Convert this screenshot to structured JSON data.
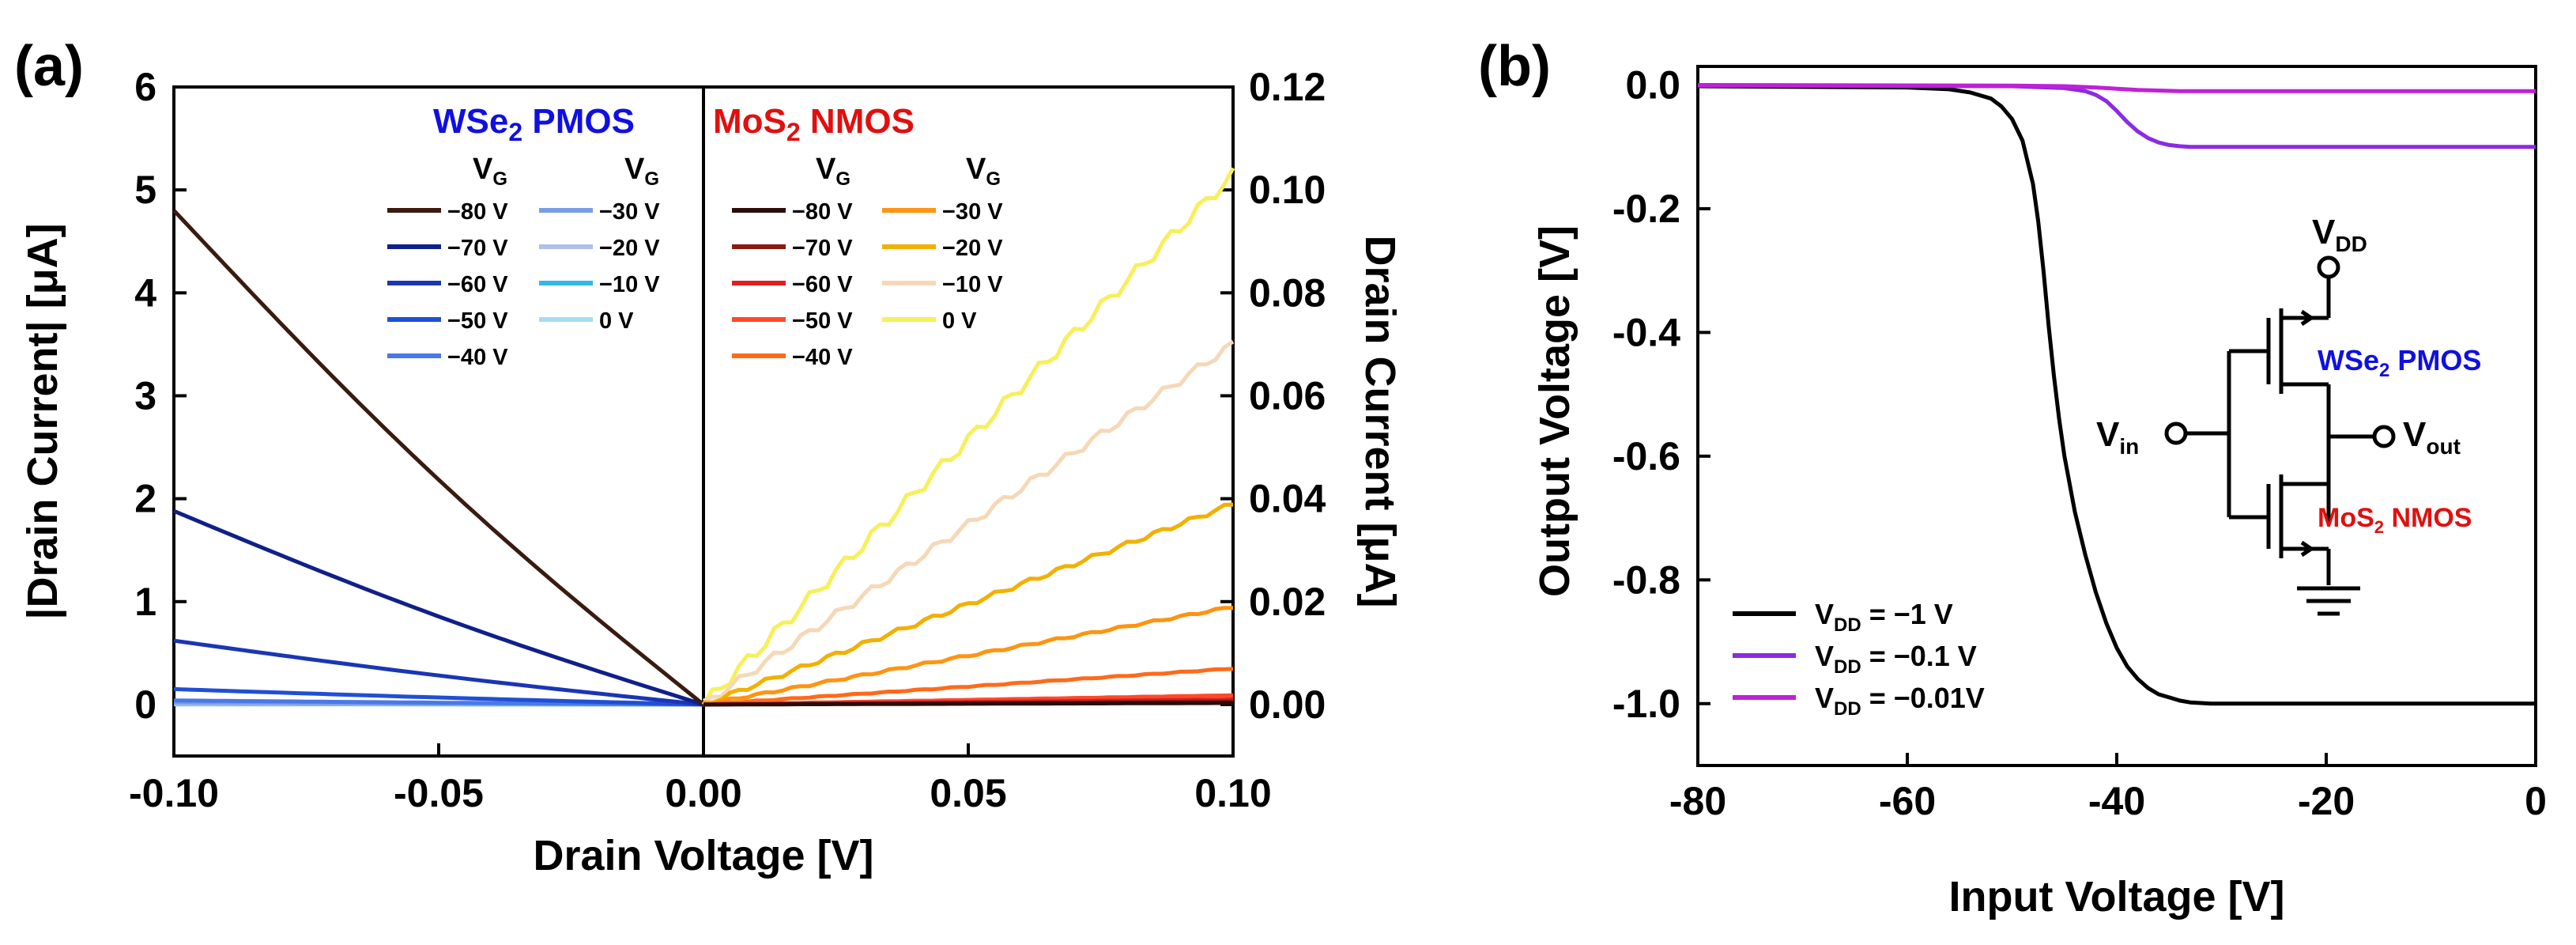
{
  "chart_data": [
    {
      "panel": "(a)",
      "type": "line",
      "xlabel": "Drain Voltage [V]",
      "ylabel_left": "|Drain Current| [μA]",
      "ylabel_right": "Drain Current [μA]",
      "xlim": [
        -0.1,
        0.1
      ],
      "ylim_left": [
        -0.5,
        6
      ],
      "ylim_right": [
        -0.01,
        0.12
      ],
      "xticks": [
        "-0.10",
        "-0.05",
        "0.00",
        "0.05",
        "0.10"
      ],
      "yticks_left": [
        "0",
        "1",
        "2",
        "3",
        "4",
        "5",
        "6"
      ],
      "yticks_right": [
        "0.00",
        "0.02",
        "0.04",
        "0.06",
        "0.08",
        "0.10",
        "0.12"
      ],
      "legend_header": "V",
      "legend_header_sub": "G",
      "pmos": {
        "title_main": "WSe",
        "title_sub": "2",
        "title_rest": " PMOS",
        "title_color": "#1010e0",
        "series": [
          {
            "name": "−80 V",
            "color": "#3b1a10",
            "x": [
              -0.1,
              0.0
            ],
            "y": [
              4.8,
              0.0
            ]
          },
          {
            "name": "−70 V",
            "color": "#10208a",
            "x": [
              -0.1,
              0.0
            ],
            "y": [
              1.88,
              0.0
            ]
          },
          {
            "name": "−60 V",
            "color": "#1a36b5",
            "x": [
              -0.1,
              0.0
            ],
            "y": [
              0.62,
              0.0
            ]
          },
          {
            "name": "−50 V",
            "color": "#1f4fd6",
            "x": [
              -0.1,
              0.0
            ],
            "y": [
              0.15,
              0.0
            ]
          },
          {
            "name": "−40 V",
            "color": "#4a78e8",
            "x": [
              -0.1,
              0.0
            ],
            "y": [
              0.04,
              0.0
            ]
          },
          {
            "name": "−30 V",
            "color": "#7a9de8",
            "x": [
              -0.1,
              0.0
            ],
            "y": [
              0.02,
              0.0
            ]
          },
          {
            "name": "−20 V",
            "color": "#aebfe8",
            "x": [
              -0.1,
              0.0
            ],
            "y": [
              0.01,
              0.0
            ]
          },
          {
            "name": "−10 V",
            "color": "#30b8e8",
            "x": [
              -0.1,
              0.0
            ],
            "y": [
              0.005,
              0.0
            ]
          },
          {
            "name": "0 V",
            "color": "#a8dcf2",
            "x": [
              -0.1,
              0.0
            ],
            "y": [
              0.002,
              0.0
            ]
          }
        ]
      },
      "nmos": {
        "title_main": "MoS",
        "title_sub": "2",
        "title_rest": " NMOS",
        "title_color": "#e01010",
        "series": [
          {
            "name": "−80 V",
            "color": "#2a0d08",
            "x": [
              0.0,
              0.1
            ],
            "y": [
              0.0,
              0.0003
            ]
          },
          {
            "name": "−70 V",
            "color": "#8a1a12",
            "x": [
              0.0,
              0.1
            ],
            "y": [
              0.0,
              0.0006
            ]
          },
          {
            "name": "−60 V",
            "color": "#e02020",
            "x": [
              0.0,
              0.1
            ],
            "y": [
              0.0,
              0.001
            ]
          },
          {
            "name": "−50 V",
            "color": "#ff4a2a",
            "x": [
              0.0,
              0.1
            ],
            "y": [
              0.0,
              0.0018
            ]
          },
          {
            "name": "−40 V",
            "color": "#ff6a1a",
            "x": [
              0.0,
              0.1
            ],
            "y": [
              0.0,
              0.007
            ]
          },
          {
            "name": "−30 V",
            "color": "#ff9410",
            "x": [
              0.0,
              0.1
            ],
            "y": [
              0.0,
              0.019
            ]
          },
          {
            "name": "−20 V",
            "color": "#f2b000",
            "x": [
              0.0,
              0.1
            ],
            "y": [
              0.0,
              0.039
            ]
          },
          {
            "name": "−10 V",
            "color": "#f6d8b8",
            "x": [
              0.0,
              0.1
            ],
            "y": [
              0.0,
              0.07
            ]
          },
          {
            "name": "0 V",
            "color": "#f6f05a",
            "x": [
              0.0,
              0.1
            ],
            "y": [
              0.0,
              0.103
            ]
          }
        ]
      }
    },
    {
      "panel": "(b)",
      "type": "line",
      "xlabel": "Input Voltage [V]",
      "ylabel": "Output Voltage [V]",
      "xlim": [
        -80,
        0
      ],
      "ylim": [
        -1.1,
        0.03
      ],
      "xticks": [
        "-80",
        "-60",
        "-40",
        "-20",
        "0"
      ],
      "yticks": [
        "0.0",
        "-0.2",
        "-0.4",
        "-0.6",
        "-0.8",
        "-1.0"
      ],
      "series": [
        {
          "name_prefix": "V",
          "name_sub": "DD",
          "name_value": " =  −1 V",
          "color": "#000000",
          "x": [
            -80,
            -60,
            -56,
            -54,
            -52,
            -51,
            -50,
            -49,
            -48,
            -47.5,
            -47,
            -46.5,
            -46,
            -45.5,
            -45,
            -44,
            -43,
            -42,
            -41,
            -40,
            -39,
            -38,
            -37,
            -36,
            -35,
            -34,
            -33,
            -32,
            -31,
            -30,
            -20,
            0
          ],
          "y": [
            -0.002,
            -0.004,
            -0.007,
            -0.012,
            -0.022,
            -0.035,
            -0.055,
            -0.09,
            -0.16,
            -0.22,
            -0.3,
            -0.39,
            -0.47,
            -0.54,
            -0.6,
            -0.69,
            -0.76,
            -0.82,
            -0.87,
            -0.91,
            -0.94,
            -0.96,
            -0.975,
            -0.985,
            -0.99,
            -0.995,
            -0.998,
            -0.999,
            -1.0,
            -1.0,
            -1.0,
            -1.0
          ]
        },
        {
          "name_prefix": "V",
          "name_sub": "DD",
          "name_value": " =  −0.1 V",
          "color": "#8a2be2",
          "x": [
            -80,
            -50,
            -45,
            -43,
            -42,
            -41,
            -40,
            -39,
            -38,
            -37,
            -36,
            -35,
            -34,
            -33,
            -32,
            -30,
            -20,
            0
          ],
          "y": [
            -0.001,
            -0.002,
            -0.005,
            -0.01,
            -0.016,
            -0.026,
            -0.042,
            -0.06,
            -0.075,
            -0.086,
            -0.093,
            -0.097,
            -0.099,
            -0.1,
            -0.1,
            -0.1,
            -0.1,
            -0.1
          ]
        },
        {
          "name_prefix": "V",
          "name_sub": "DD",
          "name_value": " =  −0.01V",
          "color": "#c020d8",
          "x": [
            -80,
            -50,
            -45,
            -42,
            -40,
            -38,
            -36,
            -34,
            -30,
            0
          ],
          "y": [
            0.0,
            -0.001,
            -0.002,
            -0.004,
            -0.006,
            -0.008,
            -0.009,
            -0.01,
            -0.01,
            -0.01
          ]
        }
      ],
      "inset": {
        "vdd_main": "V",
        "vdd_sub": "DD",
        "vin_main": "V",
        "vin_sub": "in",
        "vout_main": "V",
        "vout_sub": "out",
        "pmos_main": "WSe",
        "pmos_sub": "2",
        "pmos_rest": " PMOS",
        "nmos_main": "MoS",
        "nmos_sub": "2",
        "nmos_rest": " NMOS",
        "pmos_color": "#1010e0",
        "nmos_color": "#e01010"
      }
    }
  ]
}
